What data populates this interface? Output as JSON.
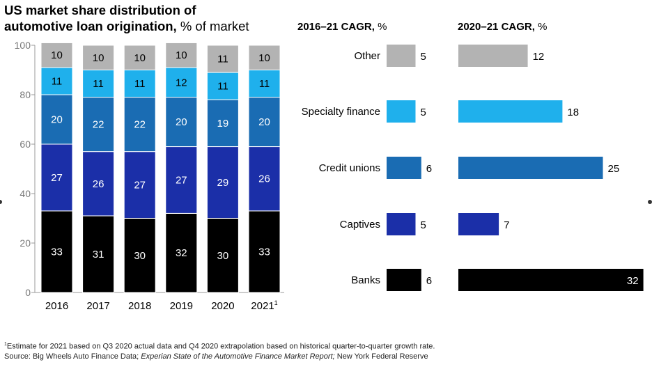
{
  "title": {
    "line1": "US market share distribution of",
    "line2": "automotive loan origination,",
    "unit": " % of market"
  },
  "panel1_title": {
    "text": "2016–21 CAGR,",
    "unit": " %"
  },
  "panel2_title": {
    "text": "2020–21 CAGR,",
    "unit": " %"
  },
  "footnote": {
    "line1_mark": "1",
    "line1": "Estimate for 2021 based on Q3 2020 actual data and Q4 2020 extrapolation based on historical quarter-to-quarter growth rate.",
    "line2_a": "Source: Big Wheels Auto Finance Data; ",
    "line2_b": "Experian State of the Automotive Finance Market Report;",
    "line2_c": " New York Federal Reserve"
  },
  "colors": {
    "Banks": "#000000",
    "Captives": "#1b2fa8",
    "Credit unions": "#1a6cb3",
    "Specialty finance": "#1fb0ec",
    "Other": "#b3b3b3"
  },
  "chart_data": [
    {
      "type": "bar",
      "stacked": true,
      "categories": [
        "2016",
        "2017",
        "2018",
        "2019",
        "2020",
        "2021"
      ],
      "category_footnotes": {
        "2021": "1"
      },
      "series": [
        {
          "name": "Banks",
          "values": [
            33,
            31,
            30,
            32,
            30,
            33
          ]
        },
        {
          "name": "Captives",
          "values": [
            27,
            26,
            27,
            27,
            29,
            26
          ]
        },
        {
          "name": "Credit unions",
          "values": [
            20,
            22,
            22,
            20,
            19,
            20
          ]
        },
        {
          "name": "Specialty finance",
          "values": [
            11,
            11,
            11,
            12,
            11,
            11
          ]
        },
        {
          "name": "Other",
          "values": [
            10,
            10,
            10,
            10,
            11,
            10
          ]
        }
      ],
      "ylim": [
        0,
        100
      ],
      "yticks": [
        0,
        20,
        40,
        60,
        80,
        100
      ],
      "grid": false,
      "legend": "none"
    },
    {
      "type": "bar",
      "orientation": "horizontal",
      "title": "2016–21 CAGR, %",
      "categories": [
        "Other",
        "Specialty finance",
        "Credit unions",
        "Captives",
        "Banks"
      ],
      "values": [
        5,
        5,
        6,
        5,
        6
      ]
    },
    {
      "type": "bar",
      "orientation": "horizontal",
      "title": "2020–21 CAGR, %",
      "categories": [
        "Other",
        "Specialty finance",
        "Credit unions",
        "Captives",
        "Banks"
      ],
      "values": [
        12,
        18,
        25,
        7,
        32
      ]
    }
  ]
}
